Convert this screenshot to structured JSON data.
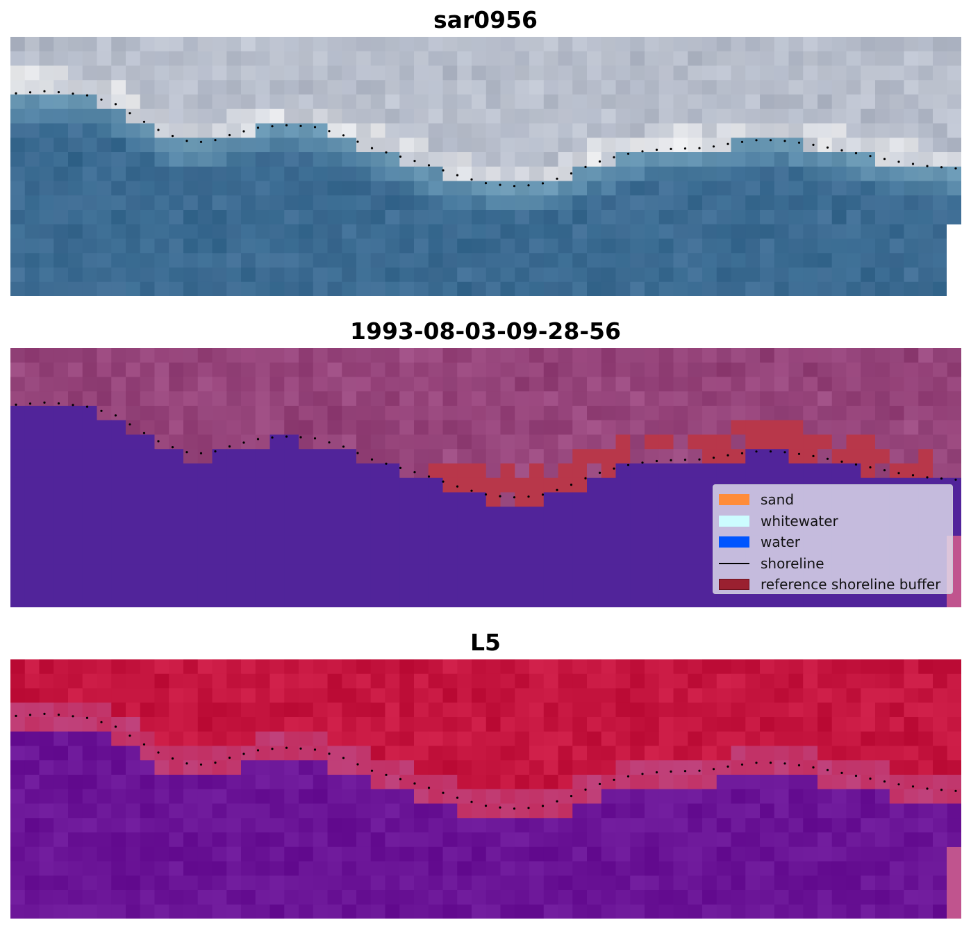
{
  "panels": [
    {
      "title": "sar0956"
    },
    {
      "title": "1993-08-03-09-28-56"
    },
    {
      "title": "L5"
    }
  ],
  "legend": {
    "items": [
      {
        "label": "sand",
        "color": "#ff8c3a"
      },
      {
        "label": "whitewater",
        "color": "#ccfcff"
      },
      {
        "label": "water",
        "color": "#0055ff"
      },
      {
        "label": "shoreline",
        "color": "#000000"
      },
      {
        "label": "reference shoreline buffer",
        "color": "#9a2030"
      }
    ]
  },
  "colors": {
    "rgb_sky": "#aeb5c4",
    "rgb_water": "#3d6f95",
    "class_land": "#9a4a80",
    "class_water": "#51249a",
    "buffer": "#b8374a",
    "index_land": "#c5153f",
    "index_water": "#6a1296"
  }
}
